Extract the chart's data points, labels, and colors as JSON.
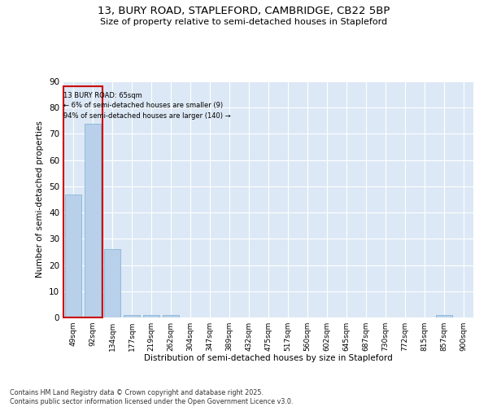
{
  "title1": "13, BURY ROAD, STAPLEFORD, CAMBRIDGE, CB22 5BP",
  "title2": "Size of property relative to semi-detached houses in Stapleford",
  "xlabel": "Distribution of semi-detached houses by size in Stapleford",
  "ylabel": "Number of semi-detached properties",
  "annotation_line1": "13 BURY ROAD: 65sqm",
  "annotation_line2": "← 6% of semi-detached houses are smaller (9)",
  "annotation_line3": "94% of semi-detached houses are larger (140) →",
  "categories": [
    "49sqm",
    "92sqm",
    "134sqm",
    "177sqm",
    "219sqm",
    "262sqm",
    "304sqm",
    "347sqm",
    "389sqm",
    "432sqm",
    "475sqm",
    "517sqm",
    "560sqm",
    "602sqm",
    "645sqm",
    "687sqm",
    "730sqm",
    "772sqm",
    "815sqm",
    "857sqm",
    "900sqm"
  ],
  "values": [
    47,
    74,
    26,
    1,
    1,
    1,
    0,
    0,
    0,
    0,
    0,
    0,
    0,
    0,
    0,
    0,
    0,
    0,
    0,
    1,
    0
  ],
  "bar_color": "#b8d0ea",
  "bar_edge_color": "#7aafd4",
  "highlight_color": "#cc0000",
  "ylim": [
    0,
    90
  ],
  "yticks": [
    0,
    10,
    20,
    30,
    40,
    50,
    60,
    70,
    80,
    90
  ],
  "bg_color": "#dce8f5",
  "footer1": "Contains HM Land Registry data © Crown copyright and database right 2025.",
  "footer2": "Contains public sector information licensed under the Open Government Licence v3.0."
}
